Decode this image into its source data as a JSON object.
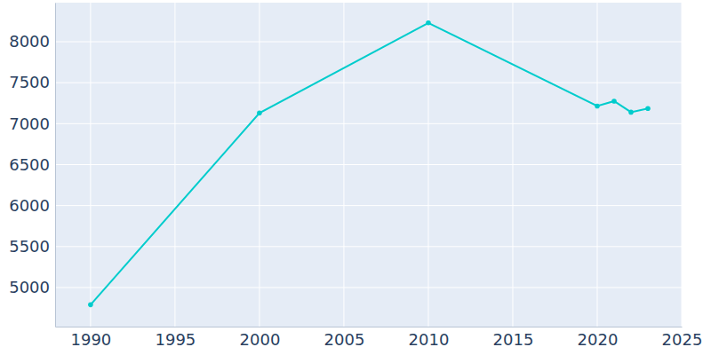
{
  "chart_data": {
    "type": "line",
    "x": [
      1990,
      2000,
      2010,
      2020,
      2021,
      2022,
      2023
    ],
    "values": [
      4790,
      7130,
      8230,
      7215,
      7275,
      7140,
      7185
    ],
    "color": "#00cccc",
    "marker": "circle",
    "xlim": [
      1987.9,
      2025
    ],
    "xticks": [
      1990,
      1995,
      2000,
      2005,
      2010,
      2015,
      2020,
      2025
    ],
    "ylim": [
      4523,
      8477
    ],
    "yticks": [
      5000,
      5500,
      6000,
      6500,
      7000,
      7500,
      8000
    ],
    "grid": true
  }
}
